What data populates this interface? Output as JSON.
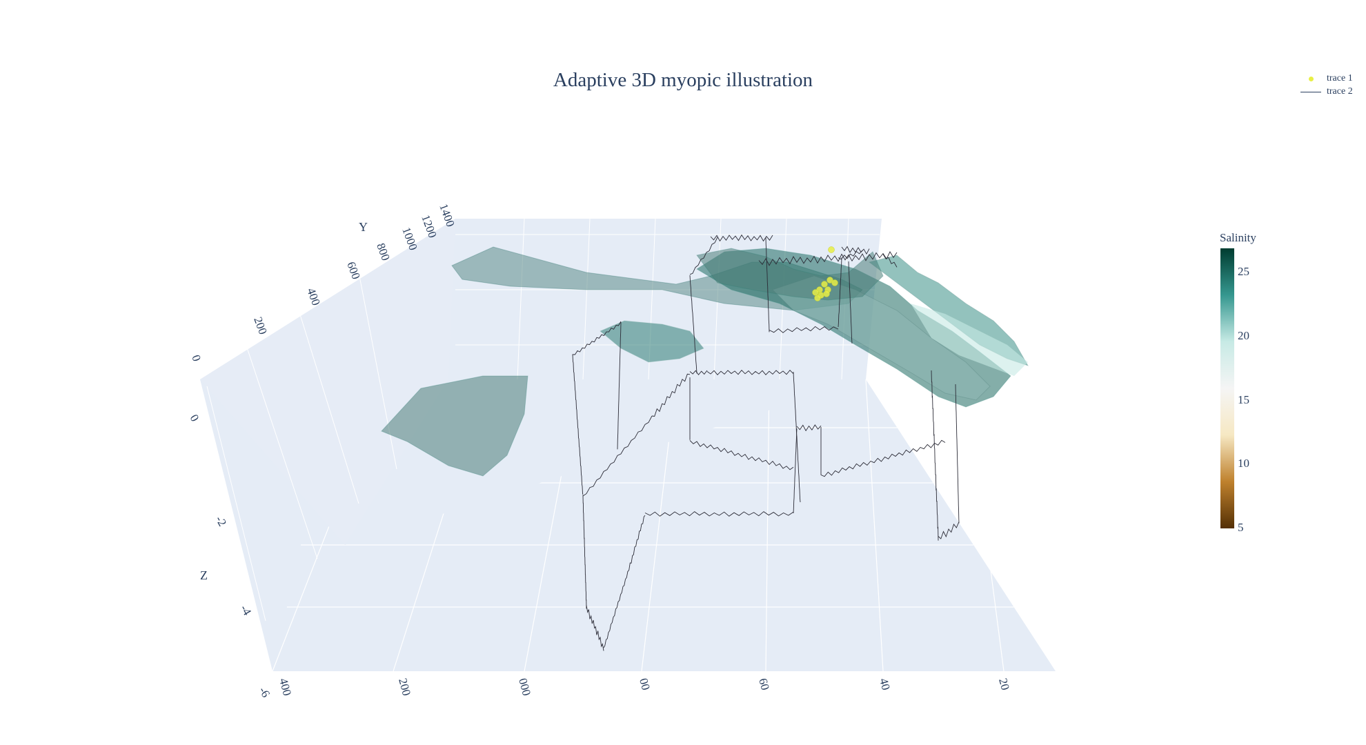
{
  "title": "Adaptive 3D myopic illustration",
  "legend": {
    "items": [
      {
        "name": "trace 1",
        "symbol": "marker",
        "color": "#e8ef45"
      },
      {
        "name": "trace 2",
        "symbol": "line",
        "color": "#2a3f5f"
      }
    ]
  },
  "colorbar": {
    "title": "Salinity",
    "ticks": [
      "25",
      "20",
      "15",
      "10",
      "5"
    ],
    "range": [
      5,
      27
    ],
    "colorscale": [
      "#543005",
      "#bf812d",
      "#f6e8c3",
      "#f5f5f5",
      "#c7eae5",
      "#35978f",
      "#003c30"
    ]
  },
  "chart_data": {
    "type": "scatter",
    "title": "Adaptive 3D myopic illustration",
    "scene": {
      "xaxis": {
        "title": "",
        "tick_labels": [
          "400",
          "200",
          "000",
          "00",
          "60",
          "40",
          "20"
        ]
      },
      "yaxis": {
        "title": "Y",
        "tick_labels": [
          "0",
          "200",
          "400",
          "600",
          "800",
          "1000",
          "1200",
          "1400"
        ],
        "range": [
          0,
          1400
        ]
      },
      "zaxis": {
        "title": "Z",
        "tick_labels": [
          "0",
          "-2",
          "-4",
          "-6"
        ],
        "range": [
          -6,
          0
        ]
      },
      "background": "#e5ecf6",
      "grid": true
    },
    "series": [
      {
        "name": "trace 1",
        "mode": "markers",
        "color": "#e8ef45"
      },
      {
        "name": "trace 2",
        "mode": "lines",
        "color": "#2a3f5f"
      },
      {
        "type": "surface",
        "colorbar_title": "Salinity",
        "opacity": 0.45
      }
    ]
  }
}
